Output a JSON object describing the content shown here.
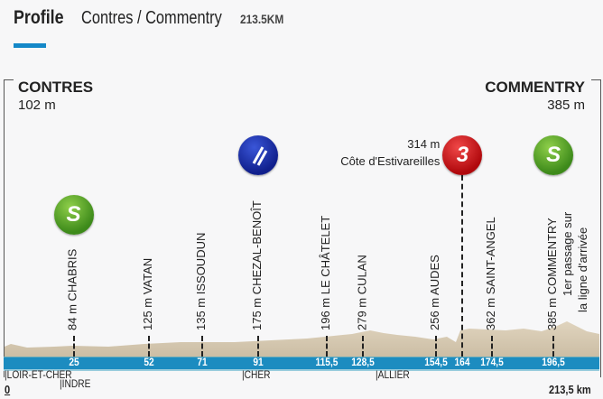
{
  "header": {
    "title": "Profile",
    "route": "Contres / Commentry",
    "distance": "213.5KM"
  },
  "colors": {
    "accent": "#1488c8",
    "sprint": "#3d8a1a",
    "climb": "#b0080c",
    "feed": "#101f8c",
    "terrain": "#d8cbb5"
  },
  "chart_data": {
    "type": "area",
    "title": "",
    "start": {
      "city": "CONTRES",
      "altitude": "102 m",
      "km": "0"
    },
    "finish": {
      "city": "COMMENTRY",
      "altitude": "385 m",
      "km": "213,5 km"
    },
    "xlim": [
      0,
      213.5
    ],
    "points": [
      {
        "km": 25,
        "km_label": "25",
        "label": "84 m CHABRIS",
        "icon": "sprint",
        "icon_text": "S"
      },
      {
        "km": 52,
        "km_label": "52",
        "label": "125 m VATAN"
      },
      {
        "km": 71,
        "km_label": "71",
        "label": "135 m ISSOUDUN"
      },
      {
        "km": 91,
        "km_label": "91",
        "label": "175 m CHEZAL-BENOÎT",
        "icon": "feed-zone-icon"
      },
      {
        "km": 115.5,
        "km_label": "115,5",
        "label": "196 m LE CHÂTELET"
      },
      {
        "km": 128.5,
        "km_label": "128,5",
        "label": "279 m CULAN"
      },
      {
        "km": 154.5,
        "km_label": "154,5",
        "label": "256 m AUDES"
      },
      {
        "km": 164,
        "km_label": "164",
        "label": "",
        "icon": "climb",
        "icon_text": "3",
        "climb_alt": "314 m",
        "climb_name": "Côte d'Estivareilles"
      },
      {
        "km": 174.5,
        "km_label": "174,5",
        "label": "362 m SAINT-ANGEL"
      },
      {
        "km": 196.5,
        "km_label": "196,5",
        "label": "385 m COMMENTRY",
        "label2": "1er passage sur",
        "label3": "la ligne d'arrivée",
        "icon": "sprint",
        "icon_text": "S"
      }
    ],
    "departments": [
      {
        "name": "|LOIR-ET-CHER",
        "km": 0
      },
      {
        "name": "|INDRE",
        "km": 20
      },
      {
        "name": "|CHER",
        "km": 85
      },
      {
        "name": "|ALLIER",
        "km": 133
      }
    ]
  }
}
